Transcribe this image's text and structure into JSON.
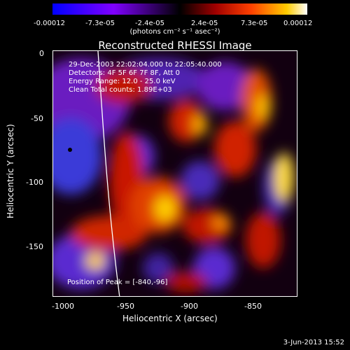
{
  "colorbar": {
    "ticks": [
      "-0.00012",
      "-7.3e-05",
      "-2.4e-05",
      "2.4e-05",
      "7.3e-05",
      "0.00012"
    ],
    "unit_label": "(photons cm⁻² s⁻¹ asec⁻²)"
  },
  "title": "Reconstructed RHESSI Image",
  "annotations": {
    "time_range": "29-Dec-2003 22:02:04.000 to 22:05:40.000",
    "detectors": "Detectors: 4F 5F 6F 7F 8F, Att 0",
    "energy": "Energy Range: 12.0 - 25.0 keV",
    "clean": "Clean    Total counts: 1.89E+03",
    "peak": "Position of Peak = [-840,-96]"
  },
  "axes": {
    "xlabel": "Heliocentric X (arcsec)",
    "ylabel": "Heliocentric Y (arcsec)",
    "xticks": [
      "-1000",
      "-950",
      "-900",
      "-850"
    ],
    "yticks": [
      "0",
      "-50",
      "-100",
      "-150"
    ]
  },
  "footer": {
    "date": "3-Jun-2013 15:52"
  }
}
